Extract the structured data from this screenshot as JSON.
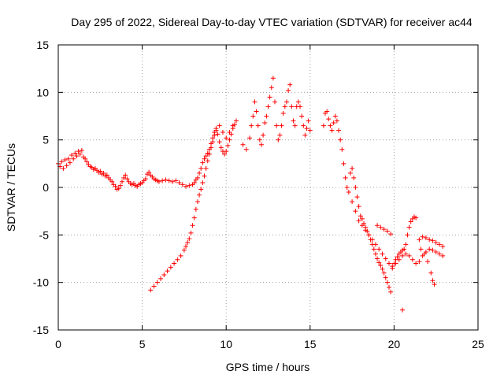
{
  "chart_data": {
    "type": "scatter",
    "title": "Day 295 of 2022, Sidereal Day-to-day VTEC variation (SDTVAR) for receiver ac44",
    "xlabel": "GPS time / hours",
    "ylabel": "SDTVAR / TECUs",
    "xlim": [
      0,
      25
    ],
    "ylim": [
      -15,
      15
    ],
    "xticks": [
      "0",
      "5",
      "10",
      "15",
      "20",
      "25"
    ],
    "yticks": [
      "-15",
      "-10",
      "-5",
      "0",
      "5",
      "10",
      "15"
    ],
    "grid": true,
    "marker": "+",
    "color": "#ff0000",
    "series": [
      {
        "name": "SDTVAR main trace",
        "points": [
          [
            0.0,
            2.5
          ],
          [
            0.1,
            2.2
          ],
          [
            0.2,
            2.7
          ],
          [
            0.3,
            2.0
          ],
          [
            0.4,
            2.9
          ],
          [
            0.5,
            2.3
          ],
          [
            0.6,
            3.0
          ],
          [
            0.7,
            2.6
          ],
          [
            0.8,
            3.4
          ],
          [
            0.9,
            3.0
          ],
          [
            1.0,
            3.6
          ],
          [
            1.1,
            3.3
          ],
          [
            1.2,
            3.8
          ],
          [
            1.3,
            3.5
          ],
          [
            1.4,
            3.9
          ],
          [
            1.5,
            3.2
          ],
          [
            1.6,
            3.0
          ],
          [
            1.7,
            2.7
          ],
          [
            1.8,
            2.4
          ],
          [
            1.9,
            2.2
          ],
          [
            2.0,
            2.1
          ],
          [
            2.1,
            1.9
          ],
          [
            2.2,
            2.0
          ],
          [
            2.3,
            1.8
          ],
          [
            2.4,
            1.6
          ],
          [
            2.5,
            1.7
          ],
          [
            2.6,
            1.4
          ],
          [
            2.7,
            1.5
          ],
          [
            2.8,
            1.2
          ],
          [
            2.9,
            1.3
          ],
          [
            3.0,
            1.0
          ],
          [
            3.1,
            0.8
          ],
          [
            3.2,
            0.6
          ],
          [
            3.3,
            0.3
          ],
          [
            3.4,
            0.1
          ],
          [
            3.5,
            -0.2
          ],
          [
            3.6,
            -0.1
          ],
          [
            3.7,
            0.2
          ],
          [
            3.8,
            0.6
          ],
          [
            3.9,
            1.0
          ],
          [
            4.0,
            1.3
          ],
          [
            4.1,
            0.9
          ],
          [
            4.2,
            0.6
          ],
          [
            4.3,
            0.4
          ],
          [
            4.4,
            0.3
          ],
          [
            4.5,
            0.4
          ],
          [
            4.6,
            0.2
          ],
          [
            4.7,
            0.1
          ],
          [
            4.8,
            0.3
          ],
          [
            4.9,
            0.4
          ],
          [
            5.0,
            0.5
          ],
          [
            5.1,
            0.7
          ],
          [
            5.2,
            0.9
          ],
          [
            5.3,
            1.4
          ],
          [
            5.4,
            1.6
          ],
          [
            5.5,
            1.3
          ],
          [
            5.6,
            1.1
          ],
          [
            5.7,
            0.9
          ],
          [
            5.8,
            0.8
          ],
          [
            5.9,
            0.7
          ],
          [
            6.0,
            0.6
          ],
          [
            6.2,
            0.7
          ],
          [
            6.4,
            0.8
          ],
          [
            6.6,
            0.7
          ],
          [
            6.8,
            0.6
          ],
          [
            7.0,
            0.7
          ],
          [
            7.2,
            0.5
          ],
          [
            7.4,
            0.3
          ],
          [
            7.6,
            0.1
          ],
          [
            7.8,
            0.2
          ],
          [
            8.0,
            0.3
          ],
          [
            8.1,
            0.5
          ],
          [
            8.2,
            0.8
          ],
          [
            8.3,
            1.0
          ],
          [
            8.4,
            1.5
          ],
          [
            8.5,
            2.0
          ],
          [
            8.6,
            2.6
          ],
          [
            8.7,
            3.0
          ],
          [
            8.8,
            3.3
          ],
          [
            8.9,
            3.6
          ],
          [
            9.0,
            4.0
          ],
          [
            9.1,
            4.6
          ],
          [
            9.2,
            5.2
          ],
          [
            9.3,
            5.8
          ],
          [
            9.4,
            6.2
          ],
          [
            9.5,
            5.6
          ],
          [
            9.6,
            4.8
          ],
          [
            9.7,
            4.2
          ],
          [
            9.8,
            3.8
          ],
          [
            9.9,
            3.5
          ],
          [
            10.0,
            3.8
          ],
          [
            10.1,
            4.4
          ],
          [
            10.2,
            5.0
          ],
          [
            10.3,
            5.6
          ],
          [
            10.4,
            6.2
          ],
          [
            10.5,
            6.6
          ],
          [
            10.6,
            7.0
          ],
          [
            11.0,
            4.5
          ],
          [
            11.2,
            4.0
          ],
          [
            11.4,
            5.2
          ],
          [
            11.5,
            6.5
          ],
          [
            11.6,
            7.5
          ],
          [
            11.7,
            9.0
          ],
          [
            11.8,
            8.0
          ],
          [
            11.9,
            6.5
          ],
          [
            12.0,
            5.0
          ],
          [
            12.1,
            4.5
          ],
          [
            12.2,
            5.5
          ],
          [
            12.3,
            6.8
          ],
          [
            12.4,
            7.5
          ],
          [
            12.5,
            8.5
          ],
          [
            12.6,
            9.5
          ],
          [
            12.7,
            10.5
          ],
          [
            12.8,
            11.5
          ],
          [
            12.9,
            9.0
          ],
          [
            13.0,
            6.5
          ],
          [
            13.1,
            5.0
          ],
          [
            13.2,
            5.5
          ],
          [
            13.3,
            6.5
          ],
          [
            13.4,
            7.8
          ],
          [
            13.5,
            8.5
          ],
          [
            13.6,
            9.0
          ],
          [
            13.7,
            10.2
          ],
          [
            13.8,
            10.8
          ],
          [
            13.9,
            8.5
          ],
          [
            14.0,
            7.0
          ],
          [
            14.1,
            6.5
          ],
          [
            14.2,
            8.5
          ],
          [
            14.3,
            9.0
          ],
          [
            14.4,
            8.5
          ],
          [
            14.5,
            7.5
          ],
          [
            14.6,
            6.5
          ],
          [
            14.7,
            5.5
          ],
          [
            14.8,
            6.2
          ],
          [
            14.9,
            7.0
          ],
          [
            15.0,
            6.0
          ],
          [
            15.8,
            6.5
          ],
          [
            15.9,
            7.8
          ],
          [
            16.0,
            8.0
          ],
          [
            16.1,
            7.2
          ],
          [
            16.2,
            6.5
          ],
          [
            16.3,
            6.0
          ],
          [
            16.4,
            6.8
          ],
          [
            16.5,
            7.5
          ],
          [
            16.6,
            7.0
          ],
          [
            16.7,
            6.0
          ],
          [
            16.8,
            5.0
          ],
          [
            16.9,
            4.0
          ],
          [
            17.0,
            2.5
          ],
          [
            17.1,
            1.0
          ],
          [
            17.2,
            0.0
          ],
          [
            17.3,
            -0.5
          ],
          [
            17.4,
            1.5
          ],
          [
            17.5,
            2.0
          ],
          [
            17.6,
            1.0
          ],
          [
            17.7,
            0.0
          ],
          [
            17.8,
            -1.0
          ],
          [
            17.9,
            -2.0
          ],
          [
            18.0,
            -3.0
          ],
          [
            18.1,
            -3.3
          ],
          [
            18.2,
            -3.8
          ],
          [
            18.3,
            -4.2
          ],
          [
            18.4,
            -4.6
          ],
          [
            18.5,
            -5.0
          ],
          [
            18.6,
            -5.5
          ],
          [
            18.7,
            -6.0
          ],
          [
            18.8,
            -6.5
          ],
          [
            18.9,
            -7.0
          ],
          [
            19.0,
            -7.5
          ],
          [
            19.1,
            -7.9
          ],
          [
            19.2,
            -8.2
          ],
          [
            19.3,
            -8.6
          ],
          [
            19.4,
            -9.0
          ],
          [
            19.5,
            -9.5
          ],
          [
            19.6,
            -10.0
          ],
          [
            19.7,
            -10.5
          ],
          [
            19.8,
            -11.0
          ],
          [
            19.9,
            -8.5
          ],
          [
            20.0,
            -8.0
          ],
          [
            20.1,
            -7.6
          ],
          [
            20.2,
            -7.3
          ],
          [
            20.3,
            -7.0
          ],
          [
            20.4,
            -6.8
          ],
          [
            20.5,
            -6.6
          ],
          [
            20.6,
            -6.5
          ],
          [
            20.7,
            -6.0
          ],
          [
            20.8,
            -5.0
          ],
          [
            20.9,
            -4.2
          ],
          [
            21.0,
            -3.6
          ],
          [
            21.1,
            -3.3
          ],
          [
            21.2,
            -3.1
          ],
          [
            21.3,
            -3.2
          ]
        ]
      },
      {
        "name": "SDTVAR lower branch",
        "points": [
          [
            5.5,
            -10.8
          ],
          [
            5.7,
            -10.4
          ],
          [
            5.9,
            -10.0
          ],
          [
            6.1,
            -9.6
          ],
          [
            6.3,
            -9.2
          ],
          [
            6.5,
            -8.8
          ],
          [
            6.7,
            -8.4
          ],
          [
            6.9,
            -8.0
          ],
          [
            7.1,
            -7.6
          ],
          [
            7.3,
            -7.2
          ],
          [
            7.5,
            -6.6
          ],
          [
            7.6,
            -6.2
          ],
          [
            7.7,
            -5.8
          ],
          [
            7.8,
            -5.4
          ],
          [
            7.9,
            -4.8
          ],
          [
            8.0,
            -4.0
          ],
          [
            8.1,
            -3.2
          ],
          [
            8.2,
            -2.3
          ],
          [
            8.3,
            -1.5
          ],
          [
            8.4,
            -0.8
          ],
          [
            8.5,
            -0.2
          ],
          [
            8.6,
            0.5
          ],
          [
            8.7,
            1.2
          ],
          [
            8.8,
            2.0
          ],
          [
            8.9,
            2.8
          ],
          [
            9.0,
            3.5
          ],
          [
            9.1,
            4.2
          ],
          [
            9.2,
            4.8
          ],
          [
            9.3,
            5.5
          ],
          [
            9.4,
            6.0
          ],
          [
            9.6,
            6.5
          ],
          [
            9.8,
            5.8
          ],
          [
            10.0,
            5.2
          ],
          [
            10.2,
            5.8
          ],
          [
            10.4,
            6.5
          ]
        ]
      },
      {
        "name": "SDTVAR late branch",
        "points": [
          [
            17.5,
            -1.5
          ],
          [
            17.7,
            -2.5
          ],
          [
            17.9,
            -3.5
          ],
          [
            18.1,
            -4.0
          ],
          [
            18.3,
            -4.5
          ],
          [
            18.5,
            -5.0
          ],
          [
            18.7,
            -5.5
          ],
          [
            18.9,
            -6.0
          ],
          [
            19.1,
            -6.5
          ],
          [
            19.3,
            -7.0
          ],
          [
            19.5,
            -7.5
          ],
          [
            19.7,
            -8.0
          ],
          [
            19.9,
            -8.3
          ],
          [
            20.1,
            -8.0
          ],
          [
            20.3,
            -7.6
          ],
          [
            20.5,
            -7.2
          ],
          [
            20.7,
            -7.0
          ],
          [
            20.9,
            -7.2
          ],
          [
            21.1,
            -7.6
          ],
          [
            21.3,
            -8.0
          ],
          [
            21.5,
            -7.8
          ],
          [
            21.7,
            -7.2
          ],
          [
            21.9,
            -6.8
          ],
          [
            22.1,
            -6.5
          ],
          [
            22.3,
            -6.6
          ],
          [
            22.5,
            -6.8
          ],
          [
            22.7,
            -7.0
          ],
          [
            22.9,
            -7.2
          ],
          [
            21.5,
            -5.5
          ],
          [
            21.7,
            -5.2
          ],
          [
            21.9,
            -5.3
          ],
          [
            22.1,
            -5.5
          ],
          [
            22.3,
            -5.6
          ],
          [
            22.5,
            -5.8
          ],
          [
            22.7,
            -6.0
          ],
          [
            22.9,
            -6.2
          ],
          [
            21.6,
            -6.5
          ],
          [
            21.8,
            -7.0
          ],
          [
            22.0,
            -7.8
          ],
          [
            22.2,
            -9.0
          ],
          [
            22.3,
            -9.8
          ],
          [
            22.4,
            -10.2
          ],
          [
            20.5,
            -12.9
          ],
          [
            19.0,
            -4.0
          ],
          [
            19.2,
            -4.2
          ],
          [
            19.4,
            -4.4
          ],
          [
            19.6,
            -4.6
          ],
          [
            19.8,
            -4.9
          ]
        ]
      }
    ]
  }
}
